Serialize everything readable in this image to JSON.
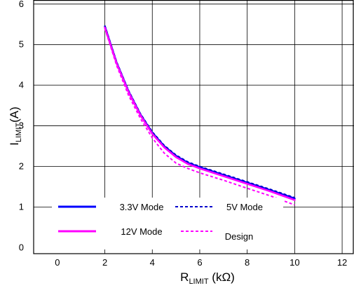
{
  "chart_data": {
    "type": "line",
    "xlabel_main": "R",
    "xlabel_sub": "LIMIT",
    "xlabel_unit": " (kΩ)",
    "ylabel_main": "I",
    "ylabel_sub": "LIMIT",
    "ylabel_unit": "(A)",
    "xlim": [
      -1,
      12.5
    ],
    "ylim": [
      -0.15,
      6.1
    ],
    "x_ticks": [
      "0",
      "2",
      "4",
      "6",
      "8",
      "10",
      "12"
    ],
    "y_ticks": [
      "0",
      "1",
      "2",
      "3",
      "4",
      "5",
      "6"
    ],
    "grid": true,
    "legend_position": "bottom-left",
    "series": [
      {
        "name": "3.3V Mode",
        "color": "#0000ff",
        "style": "solid",
        "x": [
          2.0,
          2.5,
          3.0,
          3.5,
          4.0,
          4.5,
          5.0,
          5.5,
          6.0,
          7.0,
          8.0,
          9.0,
          10.0
        ],
        "y": [
          5.45,
          4.55,
          3.85,
          3.28,
          2.83,
          2.5,
          2.26,
          2.09,
          1.98,
          1.79,
          1.6,
          1.41,
          1.21
        ]
      },
      {
        "name": "5V  Mode",
        "color": "#0000cc",
        "style": "dashed",
        "x": [
          2.0,
          2.5,
          3.0,
          3.5,
          4.0,
          4.5,
          5.0,
          5.5,
          6.0,
          7.0,
          8.0,
          9.0,
          10.0
        ],
        "y": [
          5.47,
          4.57,
          3.87,
          3.3,
          2.85,
          2.52,
          2.28,
          2.11,
          2.0,
          1.81,
          1.62,
          1.43,
          1.23
        ]
      },
      {
        "name": "12V Mode",
        "color": "#ff00ff",
        "style": "solid",
        "x": [
          2.0,
          2.5,
          3.0,
          3.5,
          4.0,
          4.5,
          5.0,
          5.5,
          6.0,
          7.0,
          8.0,
          9.0,
          10.0
        ],
        "y": [
          5.42,
          4.53,
          3.83,
          3.26,
          2.8,
          2.47,
          2.23,
          2.06,
          1.95,
          1.76,
          1.57,
          1.38,
          1.17
        ]
      },
      {
        "name": "Design",
        "color": "#ff00ff",
        "style": "dashed",
        "x": [
          2.0,
          2.5,
          3.0,
          3.5,
          4.0,
          4.5,
          5.0,
          5.5,
          6.0,
          7.0,
          8.0,
          9.0,
          10.0
        ],
        "y": [
          5.4,
          4.48,
          3.75,
          3.18,
          2.7,
          2.33,
          2.08,
          1.95,
          1.84,
          1.66,
          1.46,
          1.27,
          1.05
        ]
      }
    ]
  }
}
